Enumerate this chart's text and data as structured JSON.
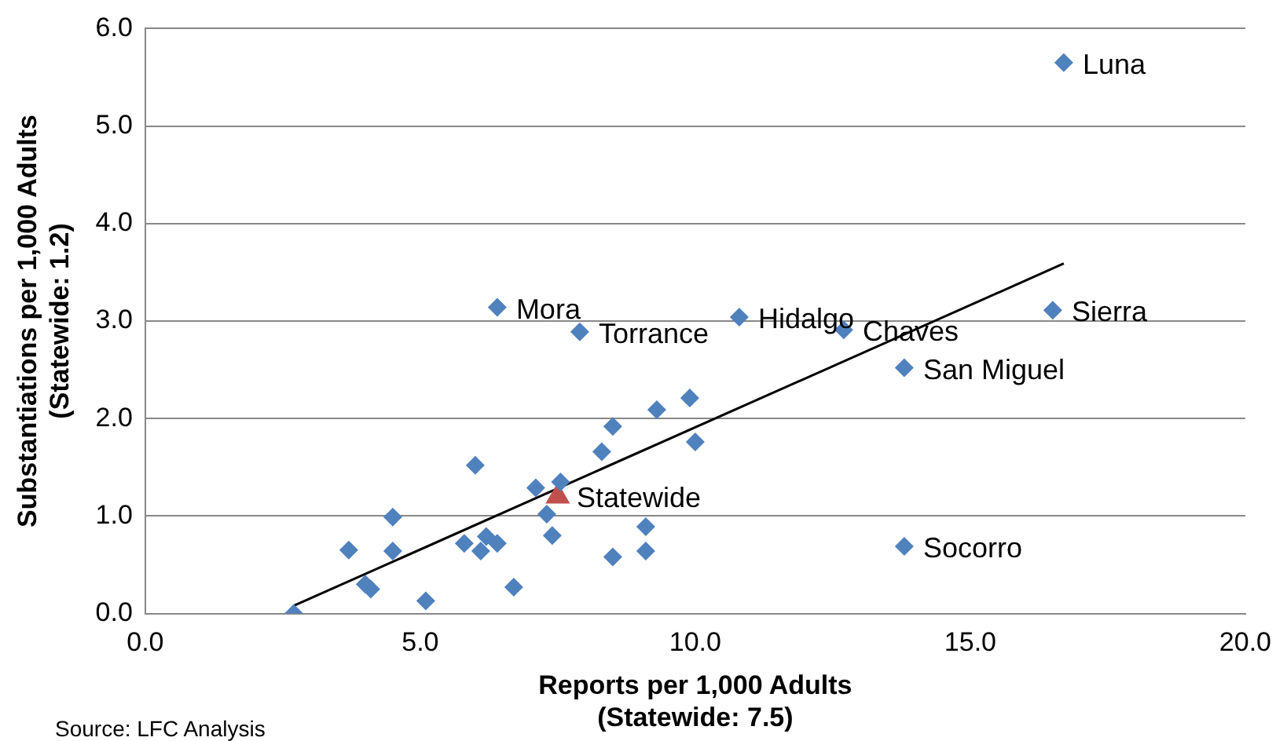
{
  "chart_data": {
    "type": "scatter",
    "xlabel": [
      "Reports per 1,000 Adults",
      "(Statewide: 7.5)"
    ],
    "ylabel": [
      "Substantiations per 1,000 Adults",
      "(Statewide: 1.2)"
    ],
    "xlim": [
      0,
      20
    ],
    "xticks": [
      {
        "value": 0,
        "label": "0.0"
      },
      {
        "value": 5,
        "label": "5.0"
      },
      {
        "value": 10,
        "label": "10.0"
      },
      {
        "value": 15,
        "label": "15.0"
      },
      {
        "value": 20,
        "label": "20.0"
      }
    ],
    "ylim": [
      0,
      6
    ],
    "yticks": [
      {
        "value": 0,
        "label": "0.0"
      },
      {
        "value": 1,
        "label": "1.0"
      },
      {
        "value": 2,
        "label": "2.0"
      },
      {
        "value": 3,
        "label": "3.0"
      },
      {
        "value": 4,
        "label": "4.0"
      },
      {
        "value": 5,
        "label": "5.0"
      },
      {
        "value": 6,
        "label": "6.0"
      }
    ],
    "grid": "y",
    "legend": false,
    "series": [
      {
        "marker": "diamond",
        "color": "#4f81bd",
        "x": [
          2.7,
          3.7,
          4.0,
          4.1,
          4.5,
          4.5,
          5.1,
          5.8,
          6.0,
          6.1,
          6.2,
          6.4,
          6.4,
          6.7,
          7.1,
          7.3,
          7.4,
          7.55,
          7.9,
          8.3,
          8.5,
          8.5,
          9.1,
          9.1,
          9.3,
          9.9,
          10.0,
          10.8,
          12.7,
          13.8,
          13.8,
          16.5,
          16.7
        ],
        "values": [
          0.0,
          0.65,
          0.3,
          0.25,
          0.99,
          0.64,
          0.13,
          0.72,
          1.52,
          0.64,
          0.79,
          0.72,
          3.14,
          0.27,
          1.29,
          1.02,
          0.8,
          1.35,
          2.89,
          1.66,
          1.92,
          0.58,
          0.89,
          0.64,
          2.09,
          2.21,
          1.76,
          3.04,
          2.91,
          2.52,
          0.69,
          3.11,
          5.65
        ]
      },
      {
        "marker": "triangle",
        "color": "#c0504d",
        "x": [
          7.5
        ],
        "values": [
          1.2
        ]
      },
      {
        "type": "line",
        "marker": "none",
        "color": "#000000",
        "x": [
          2.7,
          16.7
        ],
        "values": [
          0.08,
          3.59
        ]
      }
    ],
    "annotations": [
      {
        "text": "Luna",
        "x": 16.7,
        "y": 5.65
      },
      {
        "text": "Mora",
        "x": 6.4,
        "y": 3.14
      },
      {
        "text": "Hidalgo",
        "x": 10.8,
        "y": 3.04
      },
      {
        "text": "Sierra",
        "x": 16.5,
        "y": 3.11
      },
      {
        "text": "Torrance",
        "x": 7.9,
        "y": 2.89
      },
      {
        "text": "Chaves",
        "x": 12.7,
        "y": 2.91
      },
      {
        "text": "San Miguel",
        "x": 13.8,
        "y": 2.52
      },
      {
        "text": "Statewide",
        "x": 7.5,
        "y": 1.2
      },
      {
        "text": "Socorro",
        "x": 13.8,
        "y": 0.69
      },
      "Source: LFC Analysis"
    ]
  }
}
